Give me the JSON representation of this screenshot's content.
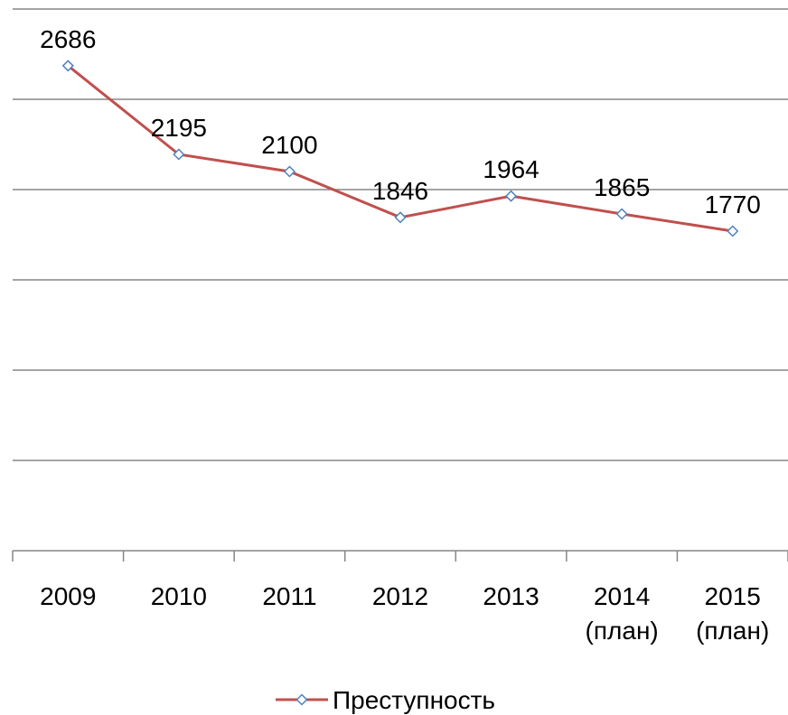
{
  "chart_data": {
    "type": "line",
    "categories": [
      "2009",
      "2010",
      "2011",
      "2012",
      "2013",
      "2014 (план)",
      "2015 (план)"
    ],
    "series": [
      {
        "name": "Преступность",
        "color": "#c0504d",
        "marker_color": "#4f81bd",
        "values": [
          2686,
          2195,
          2100,
          1846,
          1964,
          1865,
          1770
        ]
      }
    ],
    "ylim": [
      0,
      3000
    ],
    "yticks": [
      0,
      500,
      1000,
      1500,
      2000,
      2500,
      3000
    ],
    "grid": true,
    "legend": "bottom"
  }
}
